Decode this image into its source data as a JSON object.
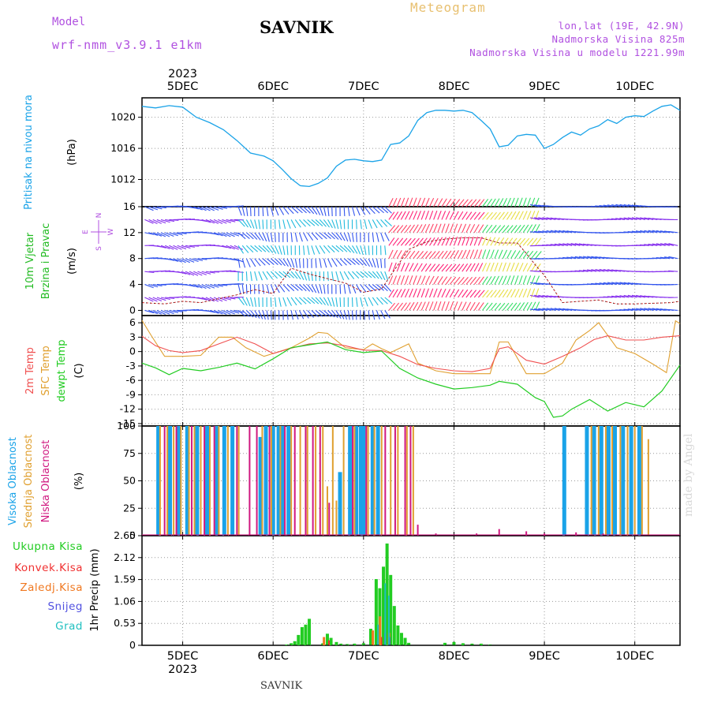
{
  "header": {
    "model_label": "Model",
    "model_name": "wrf-nmm_v3.9.1 e1km",
    "station": "SAVNIK",
    "product": "Meteogram",
    "lonlat": "lon,lat (19E, 42.9N)",
    "elevation": "Nadmorska Visina 825m",
    "model_elevation": "Nadmorska Visina u modelu 1221.99m"
  },
  "footer": {
    "station": "SAVNIK",
    "watermark": "made by Angel"
  },
  "time_axis": {
    "year_label": "2023",
    "days": [
      "5DEC",
      "6DEC",
      "7DEC",
      "8DEC",
      "9DEC",
      "10DEC"
    ],
    "x_start_day": 4.55,
    "x_end_day": 10.5
  },
  "colors": {
    "pressure": "#1aa3e8",
    "temp2m": "#f05050",
    "sfctemp": "#e0a030",
    "dewpoint": "#22cc22",
    "cloud_high": "#1aa3e8",
    "cloud_mid": "#e0a030",
    "cloud_low": "#d01880",
    "rain_total": "#22cc22",
    "rain_conv": "#f03030",
    "rain_freezing": "#f07820",
    "snow": "#5050e0",
    "graupel": "#20c0c0"
  },
  "chart_data": [
    {
      "type": "line",
      "panel": "pressure",
      "labels": [
        "Pritisak na nivou mora",
        "(hPa)"
      ],
      "ylim": [
        1008.5,
        1022.5
      ],
      "yticks": [
        "1012",
        "1016",
        "1020"
      ],
      "series": [
        {
          "name": "Pritisak na nivou mora",
          "x": [
            4.55,
            4.7,
            4.85,
            5.0,
            5.15,
            5.3,
            5.45,
            5.6,
            5.75,
            5.9,
            6.0,
            6.1,
            6.2,
            6.3,
            6.4,
            6.5,
            6.6,
            6.7,
            6.8,
            6.9,
            7.0,
            7.1,
            7.2,
            7.3,
            7.4,
            7.5,
            7.6,
            7.7,
            7.8,
            7.9,
            8.0,
            8.1,
            8.2,
            8.3,
            8.4,
            8.5,
            8.6,
            8.7,
            8.8,
            8.9,
            9.0,
            9.1,
            9.2,
            9.3,
            9.4,
            9.5,
            9.6,
            9.7,
            9.8,
            9.9,
            10.0,
            10.1,
            10.2,
            10.3,
            10.4,
            10.5
          ],
          "y": [
            1021.4,
            1021.2,
            1021.5,
            1021.3,
            1020.0,
            1019.3,
            1018.4,
            1017.0,
            1015.4,
            1015.0,
            1014.4,
            1013.3,
            1012.1,
            1011.2,
            1011.1,
            1011.5,
            1012.2,
            1013.7,
            1014.5,
            1014.6,
            1014.4,
            1014.3,
            1014.5,
            1016.5,
            1016.7,
            1017.6,
            1019.6,
            1020.6,
            1020.9,
            1020.9,
            1020.8,
            1020.9,
            1020.6,
            1019.6,
            1018.5,
            1016.2,
            1016.4,
            1017.6,
            1017.8,
            1017.7,
            1016.0,
            1016.5,
            1017.4,
            1018.1,
            1017.7,
            1018.5,
            1018.9,
            1019.7,
            1019.2,
            1020.0,
            1020.2,
            1020.1,
            1020.8,
            1021.4,
            1021.6,
            1020.9
          ]
        }
      ]
    },
    {
      "type": "vector",
      "panel": "wind",
      "labels": [
        "10m Vjetar",
        "Brzina i Pravac",
        "(m/s)"
      ],
      "ylim": [
        -0.8,
        16
      ],
      "yticks": [
        "0",
        "4",
        "8",
        "12",
        "16"
      ],
      "compass": {
        "north": "N",
        "south": "S",
        "east": "E",
        "west": "W"
      },
      "series": [
        {
          "name": "Brzina",
          "x": [
            4.55,
            4.8,
            5.0,
            5.2,
            5.4,
            5.6,
            5.8,
            6.0,
            6.2,
            6.4,
            6.6,
            6.8,
            7.0,
            7.2,
            7.3,
            7.5,
            7.7,
            7.9,
            8.1,
            8.3,
            8.5,
            8.7,
            8.8,
            8.9,
            9.0,
            9.2,
            9.4,
            9.6,
            9.8,
            10.0,
            10.2,
            10.4,
            10.5
          ],
          "y": [
            1.2,
            1.0,
            1.4,
            1.2,
            1.8,
            2.4,
            3.2,
            2.6,
            6.5,
            5.6,
            4.9,
            4.2,
            2.8,
            3.3,
            5.4,
            9.4,
            10.6,
            11.0,
            11.2,
            11.2,
            10.4,
            10.4,
            8.8,
            7.0,
            5.4,
            1.2,
            1.4,
            1.6,
            1.0,
            1.0,
            1.1,
            1.2,
            1.4
          ]
        }
      ]
    },
    {
      "type": "line",
      "panel": "temperature",
      "labels": [
        "2m Temp",
        "SFC Temp",
        "dewpt Temp",
        "(C)"
      ],
      "ylim": [
        -15.5,
        7.5
      ],
      "yticks": [
        "-15",
        "-12",
        "-9",
        "-6",
        "-3",
        "0",
        "3",
        "6"
      ],
      "series": [
        {
          "name": "2m Temp",
          "x": [
            4.55,
            4.7,
            4.85,
            5.0,
            5.2,
            5.4,
            5.6,
            5.8,
            6.0,
            6.2,
            6.4,
            6.6,
            6.8,
            7.0,
            7.2,
            7.4,
            7.6,
            7.8,
            8.0,
            8.2,
            8.4,
            8.5,
            8.6,
            8.8,
            9.0,
            9.2,
            9.4,
            9.55,
            9.7,
            9.9,
            10.1,
            10.3,
            10.5
          ],
          "y": [
            3.2,
            1.2,
            0.2,
            -0.2,
            0.2,
            1.6,
            3.0,
            1.6,
            -0.4,
            0.7,
            1.6,
            1.8,
            1.2,
            0.3,
            0.2,
            -1.0,
            -2.7,
            -3.5,
            -4.0,
            -4.2,
            -3.5,
            0.6,
            1.0,
            -1.8,
            -2.6,
            -1.0,
            0.8,
            2.5,
            3.3,
            2.4,
            2.4,
            3.0,
            3.3
          ]
        },
        {
          "name": "SFC Temp",
          "x": [
            4.55,
            4.65,
            4.8,
            5.0,
            5.2,
            5.4,
            5.55,
            5.7,
            5.9,
            6.0,
            6.2,
            6.4,
            6.5,
            6.6,
            6.8,
            7.0,
            7.1,
            7.2,
            7.3,
            7.5,
            7.6,
            7.8,
            8.0,
            8.2,
            8.4,
            8.5,
            8.6,
            8.8,
            9.0,
            9.2,
            9.35,
            9.5,
            9.6,
            9.8,
            10.0,
            10.2,
            10.35,
            10.45,
            10.5
          ],
          "y": [
            6.5,
            3.4,
            -1.0,
            -1.0,
            -0.8,
            3.0,
            3.0,
            0.8,
            -1.0,
            -0.4,
            0.8,
            2.8,
            4.0,
            3.8,
            0.8,
            0.4,
            1.6,
            0.6,
            -0.2,
            1.6,
            -2.4,
            -4.0,
            -4.6,
            -4.6,
            -4.6,
            2.0,
            2.0,
            -4.6,
            -4.6,
            -2.4,
            2.4,
            4.4,
            6.0,
            0.8,
            -0.4,
            -2.6,
            -4.4,
            6.4,
            5.8
          ]
        },
        {
          "name": "dewpt Temp",
          "x": [
            4.55,
            4.7,
            4.85,
            5.0,
            5.2,
            5.4,
            5.6,
            5.8,
            6.0,
            6.2,
            6.4,
            6.6,
            6.8,
            7.0,
            7.2,
            7.4,
            7.6,
            7.8,
            8.0,
            8.2,
            8.4,
            8.5,
            8.7,
            8.9,
            9.0,
            9.1,
            9.2,
            9.3,
            9.5,
            9.7,
            9.9,
            10.1,
            10.3,
            10.5
          ],
          "y": [
            -2.4,
            -3.4,
            -4.8,
            -3.5,
            -4.0,
            -3.3,
            -2.4,
            -3.6,
            -1.5,
            0.8,
            1.4,
            2.0,
            0.4,
            -0.2,
            0.1,
            -3.5,
            -5.5,
            -6.8,
            -7.8,
            -7.5,
            -7.0,
            -6.2,
            -6.8,
            -9.6,
            -10.4,
            -13.7,
            -13.4,
            -12.0,
            -10.0,
            -12.4,
            -10.6,
            -11.5,
            -8.2,
            -2.8
          ]
        }
      ]
    },
    {
      "type": "bar",
      "panel": "cloud",
      "labels": [
        "Visoka Oblacnost",
        "Srednja Oblacnost",
        "Niska Oblacnost",
        "(%)"
      ],
      "ylim": [
        0,
        100
      ],
      "yticks": [
        "0",
        "25",
        "50",
        "75",
        "100"
      ],
      "series": [
        {
          "name": "Visoka Oblacnost",
          "x": [
            4.73,
            4.86,
            4.96,
            5.05,
            5.16,
            5.27,
            5.38,
            5.46,
            5.55,
            5.86,
            5.92,
            6.0,
            6.06,
            6.1,
            6.17,
            6.74,
            6.85,
            6.92,
            6.97,
            7.0,
            7.1,
            7.16,
            9.22,
            9.47,
            9.55,
            9.63,
            9.71,
            9.78,
            9.87,
            9.96,
            10.05
          ],
          "y": [
            100,
            100,
            100,
            100,
            100,
            100,
            100,
            100,
            100,
            90,
            100,
            100,
            100,
            100,
            100,
            58,
            100,
            100,
            100,
            100,
            100,
            100,
            100,
            100,
            100,
            100,
            100,
            100,
            100,
            100,
            100
          ]
        },
        {
          "name": "Srednja Oblacnost",
          "x": [
            4.75,
            4.83,
            4.9,
            4.98,
            5.07,
            5.13,
            5.2,
            5.3,
            5.4,
            5.5,
            5.62,
            5.88,
            5.98,
            6.08,
            6.2,
            6.3,
            6.38,
            6.47,
            6.55,
            6.6,
            6.66,
            6.7,
            6.78,
            6.9,
            7.05,
            7.12,
            7.2,
            7.3,
            7.38,
            7.48,
            7.55,
            9.52,
            9.6,
            9.68,
            9.75,
            9.84,
            9.92,
            10.0,
            10.08,
            10.15
          ],
          "y": [
            100,
            100,
            100,
            100,
            100,
            100,
            100,
            100,
            100,
            100,
            100,
            100,
            100,
            100,
            100,
            100,
            100,
            100,
            100,
            45,
            100,
            32,
            100,
            100,
            100,
            100,
            100,
            100,
            100,
            100,
            100,
            100,
            100,
            100,
            100,
            100,
            100,
            100,
            100,
            88
          ]
        },
        {
          "name": "Niska Oblacnost",
          "x": [
            4.8,
            4.93,
            5.1,
            5.24,
            5.35,
            5.6,
            5.74,
            5.82,
            5.96,
            6.13,
            6.24,
            6.36,
            6.44,
            6.52,
            6.62,
            6.88,
            7.03,
            7.24,
            7.35,
            7.46,
            7.52,
            7.6,
            7.8,
            8.05,
            8.25,
            8.5,
            8.8,
            9.0,
            9.35,
            9.65,
            9.95,
            10.3
          ],
          "y": [
            100,
            100,
            100,
            100,
            100,
            100,
            100,
            100,
            100,
            100,
            100,
            100,
            100,
            100,
            30,
            100,
            100,
            100,
            100,
            100,
            100,
            10,
            2,
            1,
            2,
            6,
            4,
            2,
            3,
            2,
            1,
            1
          ]
        }
      ]
    },
    {
      "type": "bar",
      "panel": "precip",
      "labels": [
        "Ukupna Kisa",
        "Konvek.Kisa",
        "Zaledj.Kisa",
        "Snijeg",
        "Grad",
        "1hr Precip (mm)"
      ],
      "ylim": [
        0,
        2.65
      ],
      "yticks": [
        "0",
        "0.53",
        "1.06",
        "1.59",
        "2.12",
        "2.65"
      ],
      "series": [
        {
          "name": "Ukupna Kisa",
          "x": [
            6.15,
            6.2,
            6.24,
            6.28,
            6.32,
            6.36,
            6.4,
            6.55,
            6.6,
            6.64,
            6.7,
            6.75,
            6.82,
            6.9,
            7.0,
            7.08,
            7.14,
            7.18,
            7.22,
            7.26,
            7.3,
            7.34,
            7.38,
            7.42,
            7.46,
            7.5,
            7.9,
            8.0,
            8.1,
            8.2,
            8.3,
            8.4
          ],
          "y": [
            0.02,
            0.05,
            0.1,
            0.25,
            0.44,
            0.5,
            0.64,
            0.05,
            0.28,
            0.18,
            0.08,
            0.04,
            0.03,
            0.04,
            0.05,
            0.4,
            1.6,
            1.38,
            1.9,
            2.46,
            1.7,
            0.95,
            0.48,
            0.3,
            0.18,
            0.06,
            0.06,
            0.08,
            0.05,
            0.04,
            0.04,
            0.02
          ]
        },
        {
          "name": "Konvek.Kisa",
          "x": [
            6.6,
            7.18,
            7.26
          ],
          "y": [
            0.12,
            0.2,
            0.25
          ]
        },
        {
          "name": "Zaledj.Kisa",
          "x": [
            6.58,
            7.12,
            7.2,
            7.3
          ],
          "y": [
            0.2,
            0.36,
            0.7,
            0.3
          ]
        },
        {
          "name": "Snijeg",
          "x": [
            7.14,
            7.22,
            7.27
          ],
          "y": [
            0.1,
            0.3,
            0.2
          ]
        },
        {
          "name": "Grad",
          "x": [
            7.16,
            7.24,
            7.28
          ],
          "y": [
            0.5,
            1.5,
            1.2
          ]
        }
      ]
    }
  ]
}
